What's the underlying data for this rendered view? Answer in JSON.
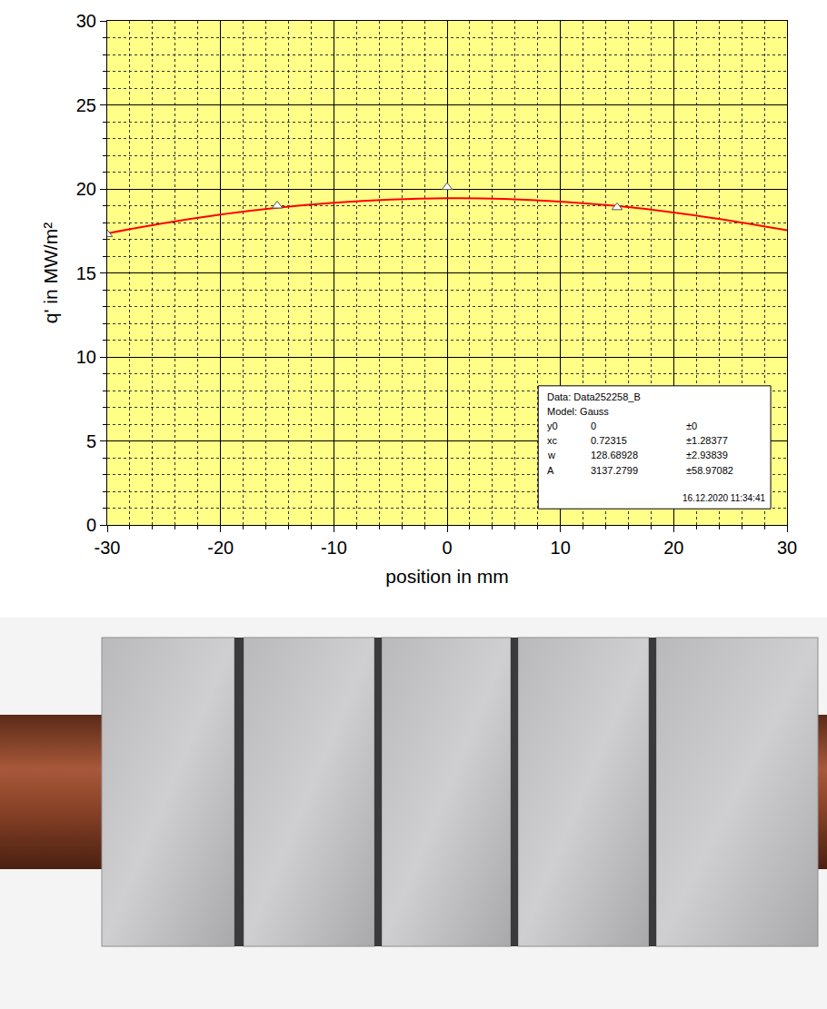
{
  "chart_data": {
    "type": "scatter",
    "x_label": "position in mm",
    "y_label": "q' in MW/m²",
    "xlim": [
      -30,
      30
    ],
    "xticks": [
      -30,
      -20,
      -10,
      0,
      10,
      20,
      30
    ],
    "ylim": [
      0,
      30
    ],
    "yticks": [
      0,
      5,
      10,
      15,
      20,
      25,
      30
    ],
    "grid": true,
    "series": [
      {
        "type": "scatter",
        "marker": "triangle-up",
        "color": "#ffffff",
        "x": [
          -30,
          -15,
          0,
          15
        ],
        "values": [
          17.3,
          19.0,
          20.1,
          18.9
        ]
      },
      {
        "type": "line",
        "line_style": "solid",
        "color": "#ff0000",
        "x": [
          -30,
          -25,
          -20,
          -15,
          -10,
          -5,
          0,
          5,
          10,
          15,
          20,
          25,
          30
        ],
        "values": [
          17.35,
          17.96,
          18.47,
          18.88,
          19.18,
          19.37,
          19.45,
          19.41,
          19.25,
          18.98,
          18.6,
          18.11,
          17.54
        ]
      }
    ],
    "fit_box": {
      "rows": [
        [
          "Data: Data252258_B"
        ],
        [
          "Model: Gauss"
        ],
        [
          "y0",
          "0",
          "±0"
        ],
        [
          "xc",
          "0.72315",
          "±1.28377"
        ],
        [
          "w",
          "128.68928",
          "±2.93839"
        ],
        [
          "A",
          "3137.2799",
          "±58.97082"
        ]
      ],
      "timestamp": "16.12.2020 11:34:41"
    }
  }
}
